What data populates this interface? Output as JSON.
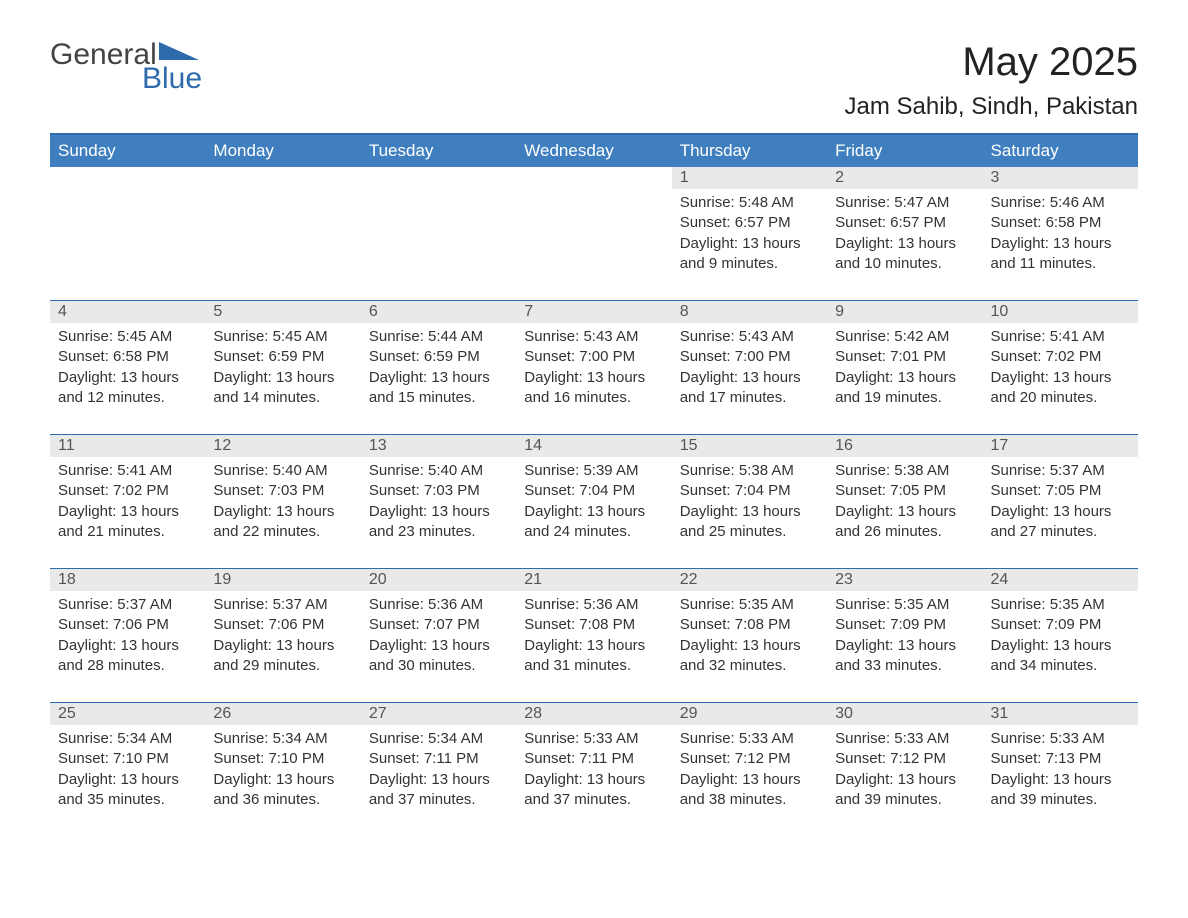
{
  "logo": {
    "word1": "General",
    "word2": "Blue"
  },
  "title": "May 2025",
  "location": "Jam Sahib, Sindh, Pakistan",
  "colors": {
    "header_bg": "#3f7fbf",
    "accent_line": "#2e6bad",
    "daynum_bg": "#e9e9e9",
    "text": "#333333",
    "logo_gray": "#444444",
    "logo_blue": "#2e6bad"
  },
  "day_headers": [
    "Sunday",
    "Monday",
    "Tuesday",
    "Wednesday",
    "Thursday",
    "Friday",
    "Saturday"
  ],
  "weeks": [
    [
      null,
      null,
      null,
      null,
      {
        "n": "1",
        "sunrise": "5:48 AM",
        "sunset": "6:57 PM",
        "daylight": "13 hours and 9 minutes."
      },
      {
        "n": "2",
        "sunrise": "5:47 AM",
        "sunset": "6:57 PM",
        "daylight": "13 hours and 10 minutes."
      },
      {
        "n": "3",
        "sunrise": "5:46 AM",
        "sunset": "6:58 PM",
        "daylight": "13 hours and 11 minutes."
      }
    ],
    [
      {
        "n": "4",
        "sunrise": "5:45 AM",
        "sunset": "6:58 PM",
        "daylight": "13 hours and 12 minutes."
      },
      {
        "n": "5",
        "sunrise": "5:45 AM",
        "sunset": "6:59 PM",
        "daylight": "13 hours and 14 minutes."
      },
      {
        "n": "6",
        "sunrise": "5:44 AM",
        "sunset": "6:59 PM",
        "daylight": "13 hours and 15 minutes."
      },
      {
        "n": "7",
        "sunrise": "5:43 AM",
        "sunset": "7:00 PM",
        "daylight": "13 hours and 16 minutes."
      },
      {
        "n": "8",
        "sunrise": "5:43 AM",
        "sunset": "7:00 PM",
        "daylight": "13 hours and 17 minutes."
      },
      {
        "n": "9",
        "sunrise": "5:42 AM",
        "sunset": "7:01 PM",
        "daylight": "13 hours and 19 minutes."
      },
      {
        "n": "10",
        "sunrise": "5:41 AM",
        "sunset": "7:02 PM",
        "daylight": "13 hours and 20 minutes."
      }
    ],
    [
      {
        "n": "11",
        "sunrise": "5:41 AM",
        "sunset": "7:02 PM",
        "daylight": "13 hours and 21 minutes."
      },
      {
        "n": "12",
        "sunrise": "5:40 AM",
        "sunset": "7:03 PM",
        "daylight": "13 hours and 22 minutes."
      },
      {
        "n": "13",
        "sunrise": "5:40 AM",
        "sunset": "7:03 PM",
        "daylight": "13 hours and 23 minutes."
      },
      {
        "n": "14",
        "sunrise": "5:39 AM",
        "sunset": "7:04 PM",
        "daylight": "13 hours and 24 minutes."
      },
      {
        "n": "15",
        "sunrise": "5:38 AM",
        "sunset": "7:04 PM",
        "daylight": "13 hours and 25 minutes."
      },
      {
        "n": "16",
        "sunrise": "5:38 AM",
        "sunset": "7:05 PM",
        "daylight": "13 hours and 26 minutes."
      },
      {
        "n": "17",
        "sunrise": "5:37 AM",
        "sunset": "7:05 PM",
        "daylight": "13 hours and 27 minutes."
      }
    ],
    [
      {
        "n": "18",
        "sunrise": "5:37 AM",
        "sunset": "7:06 PM",
        "daylight": "13 hours and 28 minutes."
      },
      {
        "n": "19",
        "sunrise": "5:37 AM",
        "sunset": "7:06 PM",
        "daylight": "13 hours and 29 minutes."
      },
      {
        "n": "20",
        "sunrise": "5:36 AM",
        "sunset": "7:07 PM",
        "daylight": "13 hours and 30 minutes."
      },
      {
        "n": "21",
        "sunrise": "5:36 AM",
        "sunset": "7:08 PM",
        "daylight": "13 hours and 31 minutes."
      },
      {
        "n": "22",
        "sunrise": "5:35 AM",
        "sunset": "7:08 PM",
        "daylight": "13 hours and 32 minutes."
      },
      {
        "n": "23",
        "sunrise": "5:35 AM",
        "sunset": "7:09 PM",
        "daylight": "13 hours and 33 minutes."
      },
      {
        "n": "24",
        "sunrise": "5:35 AM",
        "sunset": "7:09 PM",
        "daylight": "13 hours and 34 minutes."
      }
    ],
    [
      {
        "n": "25",
        "sunrise": "5:34 AM",
        "sunset": "7:10 PM",
        "daylight": "13 hours and 35 minutes."
      },
      {
        "n": "26",
        "sunrise": "5:34 AM",
        "sunset": "7:10 PM",
        "daylight": "13 hours and 36 minutes."
      },
      {
        "n": "27",
        "sunrise": "5:34 AM",
        "sunset": "7:11 PM",
        "daylight": "13 hours and 37 minutes."
      },
      {
        "n": "28",
        "sunrise": "5:33 AM",
        "sunset": "7:11 PM",
        "daylight": "13 hours and 37 minutes."
      },
      {
        "n": "29",
        "sunrise": "5:33 AM",
        "sunset": "7:12 PM",
        "daylight": "13 hours and 38 minutes."
      },
      {
        "n": "30",
        "sunrise": "5:33 AM",
        "sunset": "7:12 PM",
        "daylight": "13 hours and 39 minutes."
      },
      {
        "n": "31",
        "sunrise": "5:33 AM",
        "sunset": "7:13 PM",
        "daylight": "13 hours and 39 minutes."
      }
    ]
  ],
  "labels": {
    "sunrise": "Sunrise: ",
    "sunset": "Sunset: ",
    "daylight": "Daylight: "
  }
}
